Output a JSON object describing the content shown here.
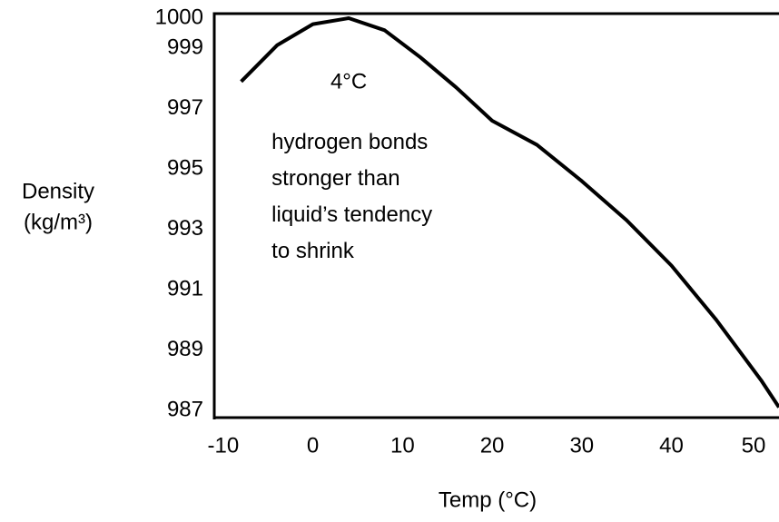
{
  "chart_data": {
    "type": "line",
    "xlabel": "Temp (°C)",
    "ylabel": [
      "Density",
      "(kg/m³)"
    ],
    "annotations": [
      {
        "text": [
          "4°C"
        ],
        "x": 4,
        "y": 999
      },
      {
        "text": [
          "hydrogen bonds",
          "stronger than",
          "liquid’s tendency",
          "to shrink"
        ],
        "x": 3.5,
        "y": 997
      }
    ],
    "x": [
      -8,
      -4,
      0,
      4,
      8,
      12,
      16,
      20,
      25,
      30,
      35,
      40,
      45,
      50,
      52
    ],
    "series": [
      {
        "name": "Density",
        "color": "#000000",
        "values": [
          997.9,
          999.1,
          999.8,
          1000,
          999.6,
          998.7,
          997.7,
          996.6,
          995.8,
          994.6,
          993.3,
          991.8,
          990.0,
          988.0,
          987.1
        ]
      }
    ],
    "xlim": [
      -11,
      52
    ],
    "xticks": [
      -10,
      0,
      10,
      20,
      30,
      40,
      50
    ],
    "ylim": [
      987,
      1000
    ],
    "yticks": [
      1000,
      999,
      997,
      995,
      993,
      991,
      989,
      987
    ],
    "grid": false
  }
}
